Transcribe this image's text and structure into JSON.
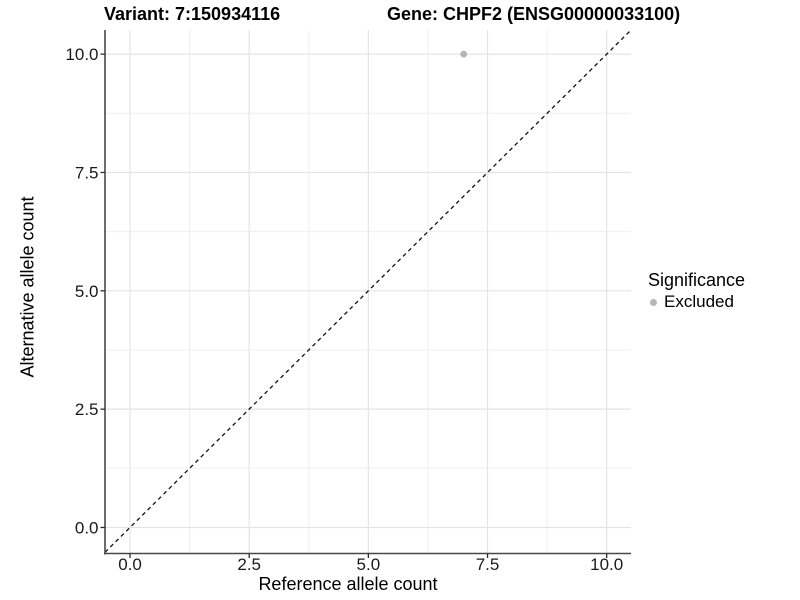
{
  "header": {
    "variant_title": "Variant: 7:150934116",
    "gene_title": "Gene: CHPF2 (ENSG00000033100)"
  },
  "legend": {
    "title": "Significance",
    "items": [
      {
        "label": "Excluded",
        "color": "#b5b5b5",
        "marker": "circle"
      }
    ]
  },
  "chart_data": {
    "type": "scatter",
    "titles": [
      "Variant: 7:150934116",
      "Gene: CHPF2 (ENSG00000033100)"
    ],
    "xlabel": "Reference allele count",
    "ylabel": "Alternative allele count",
    "xlim": [
      -0.525,
      10.51
    ],
    "ylim": [
      -0.55,
      10.51
    ],
    "x_ticks": {
      "values": [
        0,
        2.5,
        5,
        7.5,
        10
      ],
      "labels": [
        "0.0",
        "2.5",
        "5.0",
        "7.5",
        "10.0"
      ]
    },
    "y_ticks": {
      "values": [
        0,
        2.5,
        5,
        7.5,
        10
      ],
      "labels": [
        "0.0",
        "2.5",
        "5.0",
        "7.5",
        "10.0"
      ]
    },
    "x_minor_ticks": [
      1.25,
      3.75,
      6.25,
      8.75
    ],
    "y_minor_ticks": [
      1.25,
      3.75,
      6.25,
      8.75
    ],
    "grid": "major+minor",
    "legend_position": "right",
    "series": [
      {
        "name": "Excluded",
        "color": "#b5b5b5",
        "marker": "circle",
        "points": [
          {
            "x": 7,
            "y": 10
          }
        ]
      }
    ],
    "reference_line": {
      "kind": "identity y=x",
      "style": "dashed",
      "color": "#111111"
    },
    "colors": {
      "grid_major": "#e4e4e4",
      "grid_minor": "#efefef",
      "axis_line": "#484848",
      "tick_mark": "#2b2b2b",
      "tick_label": "#1a1a1a"
    }
  }
}
